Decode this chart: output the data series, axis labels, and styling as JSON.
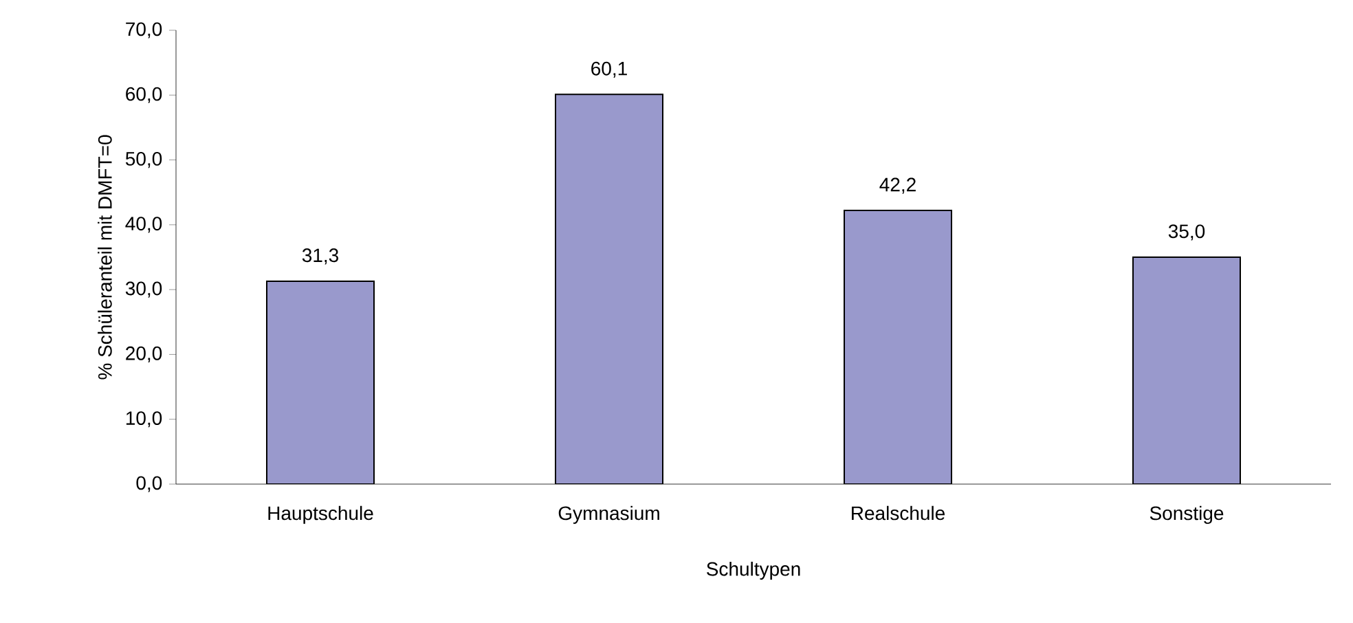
{
  "chart_data": {
    "type": "bar",
    "xlabel": "Schultypen",
    "ylabel": "% Schüleranteil mit DMFT=0",
    "categories": [
      "Hauptschule",
      "Gymnasium",
      "Realschule",
      "Sonstige"
    ],
    "values": [
      31.3,
      60.1,
      42.2,
      35.0
    ],
    "value_labels": [
      "31,3",
      "60,1",
      "42,2",
      "35,0"
    ],
    "color": "#9999cc",
    "ylim": [
      0,
      70
    ],
    "yticks": [
      {
        "value": 0,
        "label": "0,0"
      },
      {
        "value": 10,
        "label": "10,0"
      },
      {
        "value": 20,
        "label": "20,0"
      },
      {
        "value": 30,
        "label": "30,0"
      },
      {
        "value": 40,
        "label": "40,0"
      },
      {
        "value": 50,
        "label": "50,0"
      },
      {
        "value": 60,
        "label": "60,0"
      },
      {
        "value": 70,
        "label": "70,0"
      }
    ],
    "grid": false
  }
}
